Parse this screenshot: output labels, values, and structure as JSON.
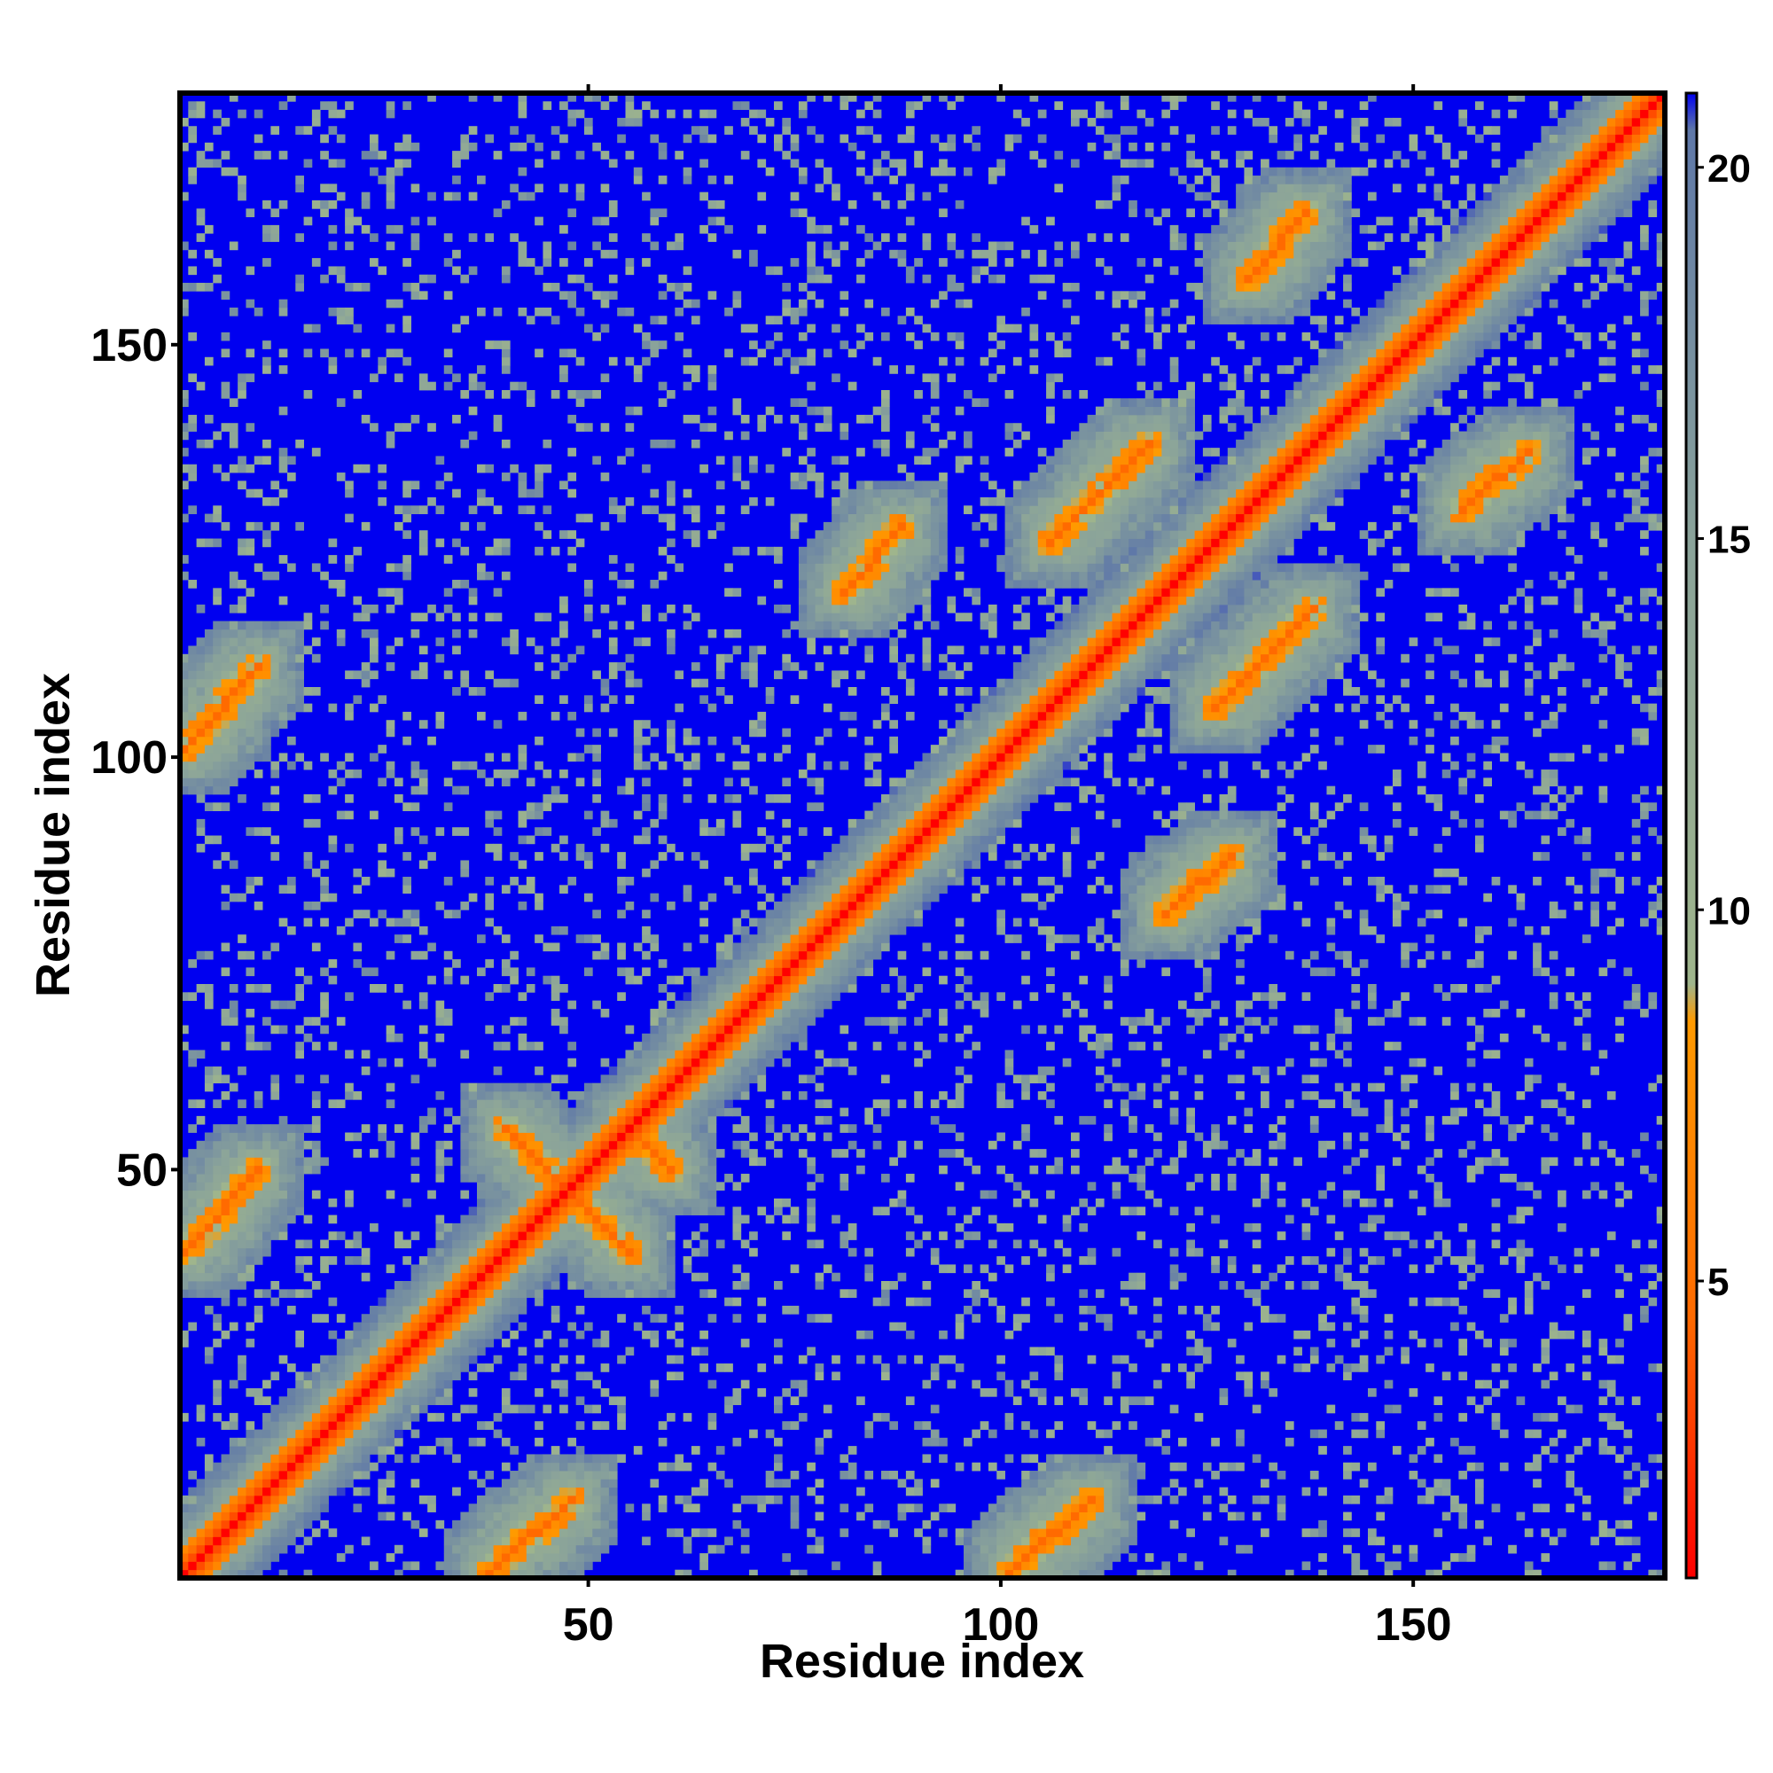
{
  "chart_data": {
    "type": "heatmap",
    "title": "",
    "xlabel": "Residue index",
    "ylabel": "Residue index",
    "xlim": [
      1,
      180
    ],
    "ylim": [
      1,
      180
    ],
    "n_residues": 180,
    "x_ticks": [
      50,
      100,
      150
    ],
    "y_ticks": [
      50,
      100,
      150
    ],
    "colorbar": {
      "range": [
        1,
        21
      ],
      "ticks": [
        5,
        10,
        15,
        20
      ],
      "colors": {
        "very_close": "#ff0000",
        "close": "#ff9a00",
        "medium": "#9fb58c",
        "far_mid": "#8aa39a",
        "far": "#0000f0"
      },
      "stops": [
        {
          "value": 1,
          "color": "#ff0000"
        },
        {
          "value": 4.5,
          "color": "#ff6a00"
        },
        {
          "value": 8.5,
          "color": "#ff9a00"
        },
        {
          "value": 9,
          "color": "#9fb58c"
        },
        {
          "value": 15,
          "color": "#8aa39a"
        },
        {
          "value": 20.5,
          "color": "#5f78a8"
        },
        {
          "value": 21,
          "color": "#0000f0"
        }
      ]
    },
    "contact_bands": [
      {
        "kind": "diagonal",
        "from": 1,
        "to": 180,
        "offset": 0
      },
      {
        "kind": "parallel",
        "i_from": 1,
        "i_to": 10,
        "j_from": 40,
        "j_to": 50
      },
      {
        "kind": "parallel",
        "i_from": 1,
        "i_to": 10,
        "j_from": 101,
        "j_to": 111
      },
      {
        "kind": "parallel",
        "i_from": 38,
        "i_to": 48,
        "j_from": 1,
        "j_to": 10
      },
      {
        "kind": "parallel",
        "i_from": 101,
        "i_to": 111,
        "j_from": 1,
        "j_to": 10
      },
      {
        "kind": "parallel",
        "i_from": 106,
        "i_to": 118,
        "j_from": 126,
        "j_to": 138
      },
      {
        "kind": "parallel",
        "i_from": 126,
        "i_to": 138,
        "j_from": 106,
        "j_to": 118
      },
      {
        "kind": "parallel",
        "i_from": 130,
        "i_to": 137,
        "j_from": 158,
        "j_to": 166
      },
      {
        "kind": "parallel",
        "i_from": 156,
        "i_to": 164,
        "j_from": 130,
        "j_to": 137
      },
      {
        "kind": "parallel",
        "i_from": 120,
        "i_to": 128,
        "j_from": 81,
        "j_to": 88
      },
      {
        "kind": "parallel",
        "i_from": 81,
        "i_to": 88,
        "j_from": 120,
        "j_to": 128
      },
      {
        "kind": "anti",
        "i_from": 40,
        "i_to": 55,
        "j_from": 55,
        "j_to": 40
      },
      {
        "kind": "anti",
        "i_from": 55,
        "i_to": 60,
        "j_from": 55,
        "j_to": 50
      }
    ]
  }
}
